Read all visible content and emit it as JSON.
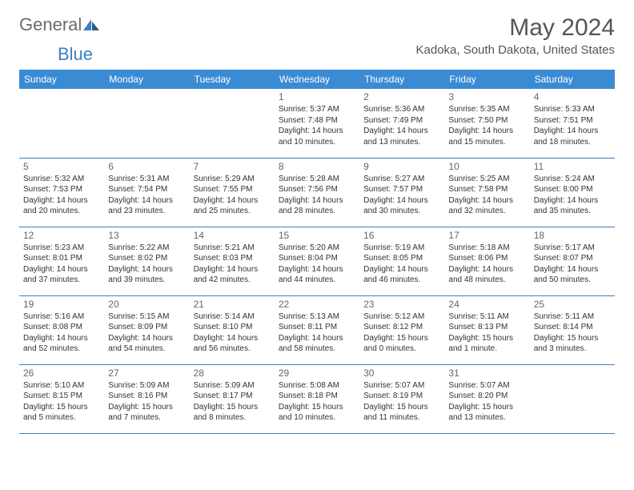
{
  "brand": {
    "general": "General",
    "blue": "Blue"
  },
  "title": "May 2024",
  "location": "Kadoka, South Dakota, United States",
  "colors": {
    "header_bg": "#3b8bd4",
    "header_text": "#ffffff",
    "border": "#3b7fc4",
    "title_text": "#555555",
    "body_text": "#333333",
    "daynum_text": "#666666",
    "logo_gray": "#6b6b6b",
    "logo_blue": "#3b7fc4"
  },
  "weekdays": [
    "Sunday",
    "Monday",
    "Tuesday",
    "Wednesday",
    "Thursday",
    "Friday",
    "Saturday"
  ],
  "weeks": [
    [
      null,
      null,
      null,
      {
        "n": "1",
        "sr": "5:37 AM",
        "ss": "7:48 PM",
        "dl": "14 hours and 10 minutes."
      },
      {
        "n": "2",
        "sr": "5:36 AM",
        "ss": "7:49 PM",
        "dl": "14 hours and 13 minutes."
      },
      {
        "n": "3",
        "sr": "5:35 AM",
        "ss": "7:50 PM",
        "dl": "14 hours and 15 minutes."
      },
      {
        "n": "4",
        "sr": "5:33 AM",
        "ss": "7:51 PM",
        "dl": "14 hours and 18 minutes."
      }
    ],
    [
      {
        "n": "5",
        "sr": "5:32 AM",
        "ss": "7:53 PM",
        "dl": "14 hours and 20 minutes."
      },
      {
        "n": "6",
        "sr": "5:31 AM",
        "ss": "7:54 PM",
        "dl": "14 hours and 23 minutes."
      },
      {
        "n": "7",
        "sr": "5:29 AM",
        "ss": "7:55 PM",
        "dl": "14 hours and 25 minutes."
      },
      {
        "n": "8",
        "sr": "5:28 AM",
        "ss": "7:56 PM",
        "dl": "14 hours and 28 minutes."
      },
      {
        "n": "9",
        "sr": "5:27 AM",
        "ss": "7:57 PM",
        "dl": "14 hours and 30 minutes."
      },
      {
        "n": "10",
        "sr": "5:25 AM",
        "ss": "7:58 PM",
        "dl": "14 hours and 32 minutes."
      },
      {
        "n": "11",
        "sr": "5:24 AM",
        "ss": "8:00 PM",
        "dl": "14 hours and 35 minutes."
      }
    ],
    [
      {
        "n": "12",
        "sr": "5:23 AM",
        "ss": "8:01 PM",
        "dl": "14 hours and 37 minutes."
      },
      {
        "n": "13",
        "sr": "5:22 AM",
        "ss": "8:02 PM",
        "dl": "14 hours and 39 minutes."
      },
      {
        "n": "14",
        "sr": "5:21 AM",
        "ss": "8:03 PM",
        "dl": "14 hours and 42 minutes."
      },
      {
        "n": "15",
        "sr": "5:20 AM",
        "ss": "8:04 PM",
        "dl": "14 hours and 44 minutes."
      },
      {
        "n": "16",
        "sr": "5:19 AM",
        "ss": "8:05 PM",
        "dl": "14 hours and 46 minutes."
      },
      {
        "n": "17",
        "sr": "5:18 AM",
        "ss": "8:06 PM",
        "dl": "14 hours and 48 minutes."
      },
      {
        "n": "18",
        "sr": "5:17 AM",
        "ss": "8:07 PM",
        "dl": "14 hours and 50 minutes."
      }
    ],
    [
      {
        "n": "19",
        "sr": "5:16 AM",
        "ss": "8:08 PM",
        "dl": "14 hours and 52 minutes."
      },
      {
        "n": "20",
        "sr": "5:15 AM",
        "ss": "8:09 PM",
        "dl": "14 hours and 54 minutes."
      },
      {
        "n": "21",
        "sr": "5:14 AM",
        "ss": "8:10 PM",
        "dl": "14 hours and 56 minutes."
      },
      {
        "n": "22",
        "sr": "5:13 AM",
        "ss": "8:11 PM",
        "dl": "14 hours and 58 minutes."
      },
      {
        "n": "23",
        "sr": "5:12 AM",
        "ss": "8:12 PM",
        "dl": "15 hours and 0 minutes."
      },
      {
        "n": "24",
        "sr": "5:11 AM",
        "ss": "8:13 PM",
        "dl": "15 hours and 1 minute."
      },
      {
        "n": "25",
        "sr": "5:11 AM",
        "ss": "8:14 PM",
        "dl": "15 hours and 3 minutes."
      }
    ],
    [
      {
        "n": "26",
        "sr": "5:10 AM",
        "ss": "8:15 PM",
        "dl": "15 hours and 5 minutes."
      },
      {
        "n": "27",
        "sr": "5:09 AM",
        "ss": "8:16 PM",
        "dl": "15 hours and 7 minutes."
      },
      {
        "n": "28",
        "sr": "5:09 AM",
        "ss": "8:17 PM",
        "dl": "15 hours and 8 minutes."
      },
      {
        "n": "29",
        "sr": "5:08 AM",
        "ss": "8:18 PM",
        "dl": "15 hours and 10 minutes."
      },
      {
        "n": "30",
        "sr": "5:07 AM",
        "ss": "8:19 PM",
        "dl": "15 hours and 11 minutes."
      },
      {
        "n": "31",
        "sr": "5:07 AM",
        "ss": "8:20 PM",
        "dl": "15 hours and 13 minutes."
      },
      null
    ]
  ],
  "labels": {
    "sunrise": "Sunrise:",
    "sunset": "Sunset:",
    "daylight": "Daylight:"
  }
}
